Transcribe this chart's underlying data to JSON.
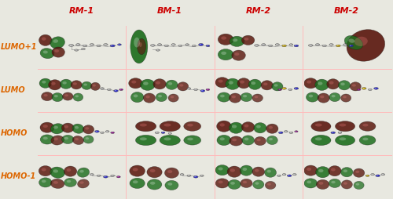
{
  "col_headers": [
    "RM-1",
    "BM-1",
    "RM-2",
    "BM-2"
  ],
  "row_labels": [
    "LUMO+1",
    "LUMO",
    "HOMO",
    "HOMO-1"
  ],
  "col_header_color": "#cc0000",
  "row_label_color": "#dd6600",
  "grid_line_color": "#ffbbbb",
  "background_color": "#e8e8e0",
  "cell_bg_color": "#deded8",
  "n_cols": 4,
  "n_rows": 4,
  "col_header_fontsize": 8,
  "row_label_fontsize": 7,
  "figsize": [
    5.0,
    2.54
  ],
  "dpi": 100,
  "green": "#1e6e1e",
  "dark_red": "#5c1a10",
  "atom_gray": "#b0b0b0",
  "atom_blue": "#2020cc",
  "atom_yellow": "#ccaa00",
  "atom_purple": "#880088",
  "atom_white": "#e8e8e8"
}
